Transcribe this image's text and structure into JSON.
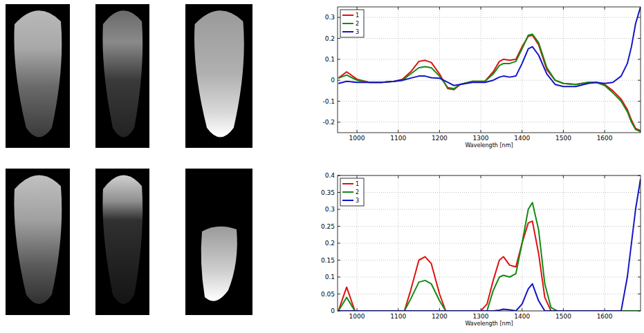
{
  "chart_data": [
    {
      "type": "line",
      "x_label": "Wavelength [nm]",
      "x": [
        955,
        975,
        1000,
        1030,
        1060,
        1090,
        1110,
        1130,
        1150,
        1165,
        1180,
        1200,
        1220,
        1235,
        1250,
        1280,
        1310,
        1330,
        1345,
        1355,
        1370,
        1385,
        1400,
        1415,
        1425,
        1440,
        1460,
        1480,
        1500,
        1530,
        1560,
        1580,
        1600,
        1620,
        1640,
        1655,
        1665,
        1675,
        1687
      ],
      "series": [
        {
          "name": "1",
          "color": "#e01010",
          "values": [
            0.01,
            0.04,
            0.005,
            -0.01,
            -0.01,
            -0.005,
            0.005,
            0.04,
            0.09,
            0.095,
            0.085,
            0.03,
            -0.04,
            -0.045,
            -0.02,
            -0.005,
            -0.005,
            0.04,
            0.09,
            0.1,
            0.095,
            0.1,
            0.16,
            0.21,
            0.215,
            0.17,
            0.05,
            0.0,
            -0.015,
            -0.02,
            -0.01,
            -0.01,
            -0.02,
            -0.05,
            -0.09,
            -0.14,
            -0.19,
            -0.23,
            -0.24
          ]
        },
        {
          "name": "2",
          "color": "#138a13",
          "values": [
            0.01,
            0.025,
            0.0,
            -0.01,
            -0.01,
            -0.005,
            0.0,
            0.03,
            0.06,
            0.065,
            0.06,
            0.02,
            -0.035,
            -0.04,
            -0.02,
            -0.005,
            -0.005,
            0.03,
            0.07,
            0.08,
            0.08,
            0.09,
            0.15,
            0.215,
            0.22,
            0.18,
            0.06,
            0.0,
            -0.015,
            -0.02,
            -0.01,
            -0.01,
            -0.025,
            -0.06,
            -0.1,
            -0.15,
            -0.2,
            -0.235,
            -0.245
          ]
        },
        {
          "name": "3",
          "color": "#1414c8",
          "values": [
            -0.015,
            -0.005,
            -0.01,
            -0.01,
            -0.01,
            -0.005,
            0.0,
            0.01,
            0.02,
            0.02,
            0.012,
            0.01,
            -0.01,
            -0.025,
            -0.02,
            -0.01,
            -0.01,
            0.0,
            0.015,
            0.02,
            0.015,
            0.02,
            0.08,
            0.15,
            0.16,
            0.12,
            0.03,
            -0.02,
            -0.03,
            -0.03,
            -0.015,
            -0.01,
            -0.015,
            -0.01,
            0.02,
            0.08,
            0.16,
            0.27,
            0.35
          ]
        }
      ],
      "xlim": [
        953,
        1687
      ],
      "ylim": [
        -0.25,
        0.35
      ],
      "xticks": [
        1000,
        1100,
        1200,
        1300,
        1400,
        1500,
        1600
      ],
      "yticks": [
        -0.2,
        -0.1,
        0,
        0.1,
        0.2,
        0.3
      ],
      "grid": true,
      "legend": "upper left"
    },
    {
      "type": "line",
      "x_label": "Wavelength [nm]",
      "x": [
        955,
        975,
        995,
        1100,
        1115,
        1130,
        1150,
        1165,
        1180,
        1200,
        1215,
        1300,
        1315,
        1330,
        1345,
        1355,
        1370,
        1385,
        1400,
        1415,
        1425,
        1440,
        1455,
        1470,
        1485,
        1640,
        1655,
        1665,
        1675,
        1687
      ],
      "series": [
        {
          "name": "1",
          "color": "#e01010",
          "values": [
            0.0,
            0.07,
            0.0,
            0.0,
            0.0,
            0.06,
            0.15,
            0.16,
            0.14,
            0.05,
            0.0,
            0.0,
            0.02,
            0.09,
            0.15,
            0.16,
            0.135,
            0.13,
            0.2,
            0.26,
            0.265,
            0.17,
            0.04,
            0.0,
            0.0,
            0.0,
            0.0,
            0.0,
            0.0,
            0.0
          ]
        },
        {
          "name": "2",
          "color": "#138a13",
          "values": [
            0.0,
            0.04,
            0.0,
            0.0,
            0.0,
            0.035,
            0.085,
            0.09,
            0.08,
            0.03,
            0.0,
            0.0,
            0.0,
            0.06,
            0.1,
            0.105,
            0.1,
            0.11,
            0.2,
            0.3,
            0.32,
            0.24,
            0.08,
            0.01,
            0.0,
            0.0,
            0.0,
            0.0,
            0.0,
            0.0
          ]
        },
        {
          "name": "3",
          "color": "#1414c8",
          "values": [
            0.0,
            0.0,
            0.0,
            0.0,
            0.0,
            0.0,
            0.0,
            0.0,
            0.0,
            0.0,
            0.0,
            0.0,
            0.0,
            0.0,
            0.002,
            0.005,
            0.003,
            0.0,
            0.02,
            0.065,
            0.08,
            0.03,
            0.0,
            0.0,
            0.0,
            0.0,
            0.1,
            0.2,
            0.3,
            0.39
          ]
        }
      ],
      "xlim": [
        953,
        1687
      ],
      "ylim": [
        0,
        0.4
      ],
      "xticks": [
        1000,
        1100,
        1200,
        1300,
        1400,
        1500,
        1600
      ],
      "yticks": [
        0,
        0.05,
        0.1,
        0.15,
        0.2,
        0.25,
        0.3,
        0.35,
        0.4
      ],
      "grid": true,
      "legend": "upper left"
    }
  ]
}
